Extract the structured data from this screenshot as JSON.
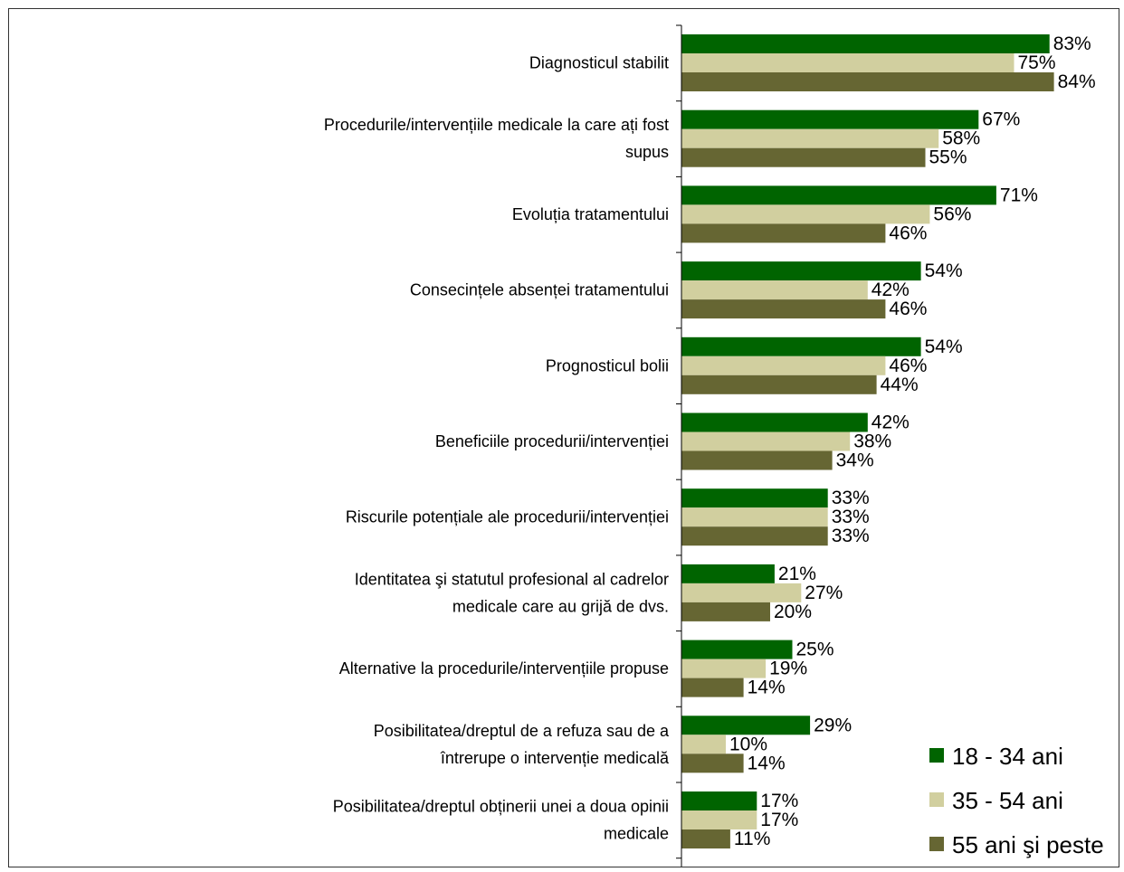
{
  "chart_data": {
    "type": "bar",
    "orientation": "horizontal",
    "title": "",
    "xlabel": "",
    "ylabel": "",
    "xlim": [
      0,
      100
    ],
    "value_suffix": "%",
    "grid": false,
    "legend_position": "bottom-right",
    "categories": [
      [
        "Diagnosticul stabilit"
      ],
      [
        "Procedurile/intervențiile medicale la care ați fost",
        "supus"
      ],
      [
        "Evoluția tratamentului"
      ],
      [
        "Consecințele absenței tratamentului"
      ],
      [
        "Prognosticul bolii"
      ],
      [
        "Beneficiile procedurii/intervenției"
      ],
      [
        "Riscurile potențiale ale procedurii/intervenției"
      ],
      [
        "Identitatea şi statutul profesional al cadrelor",
        "medicale care au grijă de dvs."
      ],
      [
        "Alternative la procedurile/intervențiile propuse"
      ],
      [
        "Posibilitatea/dreptul de a refuza sau de a",
        "întrerupe o intervenție medicală"
      ],
      [
        "Posibilitatea/dreptul obținerii unei a doua opinii",
        "medicale"
      ]
    ],
    "series": [
      {
        "name": "18 - 34 ani",
        "color": "#006400",
        "values": [
          83,
          67,
          71,
          54,
          54,
          42,
          33,
          21,
          25,
          29,
          17
        ]
      },
      {
        "name": "35 - 54 ani",
        "color": "#d1cf9f",
        "values": [
          75,
          58,
          56,
          42,
          46,
          38,
          33,
          27,
          19,
          10,
          17
        ]
      },
      {
        "name": "55 ani şi peste",
        "color": "#666633",
        "values": [
          84,
          55,
          46,
          46,
          44,
          34,
          33,
          20,
          14,
          14,
          11
        ]
      }
    ]
  }
}
